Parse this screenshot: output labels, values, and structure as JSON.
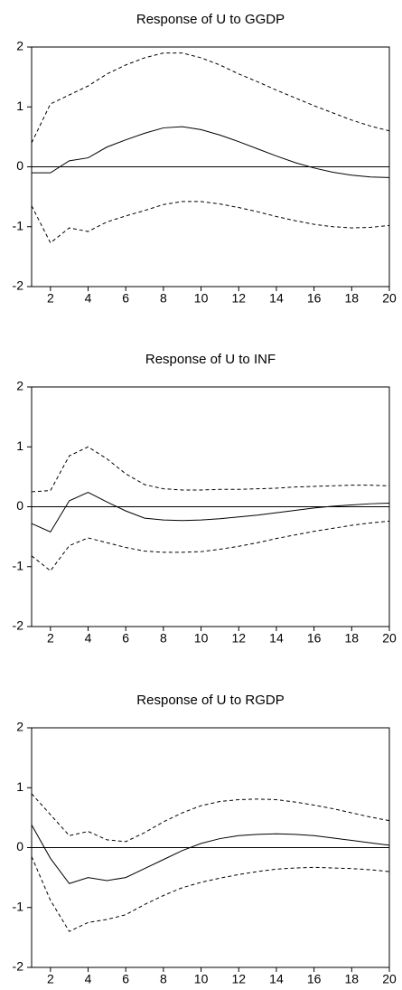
{
  "chart_data": [
    {
      "type": "line",
      "title": "Response of U to GGDP",
      "x": [
        1,
        2,
        3,
        4,
        5,
        6,
        7,
        8,
        9,
        10,
        11,
        12,
        13,
        14,
        15,
        16,
        17,
        18,
        19,
        20
      ],
      "xlim": [
        1,
        20
      ],
      "xticks": [
        2,
        4,
        6,
        8,
        10,
        12,
        14,
        16,
        18,
        20
      ],
      "ylim": [
        -2,
        2
      ],
      "yticks": [
        -2,
        -1,
        0,
        1,
        2
      ],
      "zero_line": true,
      "series": [
        {
          "color": "#000000",
          "dash": false,
          "values": [
            -0.1,
            -0.1,
            0.1,
            0.15,
            0.33,
            0.45,
            0.56,
            0.65,
            0.67,
            0.62,
            0.53,
            0.42,
            0.3,
            0.18,
            0.07,
            -0.02,
            -0.09,
            -0.14,
            -0.17,
            -0.18
          ]
        },
        {
          "color": "#000000",
          "dash": true,
          "values": [
            0.4,
            1.05,
            1.2,
            1.35,
            1.55,
            1.7,
            1.82,
            1.9,
            1.9,
            1.82,
            1.7,
            1.55,
            1.42,
            1.28,
            1.15,
            1.02,
            0.9,
            0.78,
            0.68,
            0.6
          ]
        },
        {
          "color": "#000000",
          "dash": true,
          "values": [
            -0.65,
            -1.27,
            -1.02,
            -1.08,
            -0.92,
            -0.82,
            -0.73,
            -0.63,
            -0.58,
            -0.58,
            -0.62,
            -0.68,
            -0.75,
            -0.83,
            -0.9,
            -0.96,
            -1.0,
            -1.02,
            -1.01,
            -0.98
          ]
        }
      ]
    },
    {
      "type": "line",
      "title": "Response of U to INF",
      "x": [
        1,
        2,
        3,
        4,
        5,
        6,
        7,
        8,
        9,
        10,
        11,
        12,
        13,
        14,
        15,
        16,
        17,
        18,
        19,
        20
      ],
      "xlim": [
        1,
        20
      ],
      "xticks": [
        2,
        4,
        6,
        8,
        10,
        12,
        14,
        16,
        18,
        20
      ],
      "ylim": [
        -2,
        2
      ],
      "yticks": [
        -2,
        -1,
        0,
        1,
        2
      ],
      "zero_line": true,
      "series": [
        {
          "color": "#000000",
          "dash": false,
          "values": [
            -0.28,
            -0.42,
            0.1,
            0.24,
            0.08,
            -0.07,
            -0.19,
            -0.22,
            -0.23,
            -0.22,
            -0.2,
            -0.17,
            -0.14,
            -0.1,
            -0.06,
            -0.02,
            0.01,
            0.03,
            0.05,
            0.06
          ]
        },
        {
          "color": "#000000",
          "dash": true,
          "values": [
            0.25,
            0.27,
            0.85,
            1.0,
            0.8,
            0.55,
            0.37,
            0.3,
            0.28,
            0.28,
            0.29,
            0.29,
            0.3,
            0.31,
            0.33,
            0.34,
            0.35,
            0.36,
            0.36,
            0.35
          ]
        },
        {
          "color": "#000000",
          "dash": true,
          "values": [
            -0.82,
            -1.07,
            -0.65,
            -0.52,
            -0.6,
            -0.68,
            -0.74,
            -0.76,
            -0.76,
            -0.75,
            -0.71,
            -0.66,
            -0.6,
            -0.53,
            -0.47,
            -0.41,
            -0.36,
            -0.31,
            -0.27,
            -0.24
          ]
        }
      ]
    },
    {
      "type": "line",
      "title": "Response of U to RGDP",
      "x": [
        1,
        2,
        3,
        4,
        5,
        6,
        7,
        8,
        9,
        10,
        11,
        12,
        13,
        14,
        15,
        16,
        17,
        18,
        19,
        20
      ],
      "xlim": [
        1,
        20
      ],
      "xticks": [
        2,
        4,
        6,
        8,
        10,
        12,
        14,
        16,
        18,
        20
      ],
      "ylim": [
        -2,
        2
      ],
      "yticks": [
        -2,
        -1,
        0,
        1,
        2
      ],
      "zero_line": true,
      "series": [
        {
          "color": "#000000",
          "dash": false,
          "values": [
            0.38,
            -0.18,
            -0.6,
            -0.5,
            -0.55,
            -0.5,
            -0.35,
            -0.2,
            -0.05,
            0.07,
            0.15,
            0.2,
            0.22,
            0.23,
            0.22,
            0.2,
            0.16,
            0.12,
            0.08,
            0.04
          ]
        },
        {
          "color": "#000000",
          "dash": true,
          "values": [
            0.9,
            0.55,
            0.2,
            0.27,
            0.13,
            0.1,
            0.25,
            0.43,
            0.58,
            0.7,
            0.77,
            0.8,
            0.81,
            0.8,
            0.76,
            0.71,
            0.65,
            0.58,
            0.51,
            0.45
          ]
        },
        {
          "color": "#000000",
          "dash": true,
          "values": [
            -0.15,
            -0.88,
            -1.4,
            -1.25,
            -1.2,
            -1.12,
            -0.95,
            -0.8,
            -0.67,
            -0.58,
            -0.51,
            -0.45,
            -0.4,
            -0.36,
            -0.34,
            -0.33,
            -0.34,
            -0.35,
            -0.37,
            -0.4
          ]
        }
      ]
    }
  ]
}
